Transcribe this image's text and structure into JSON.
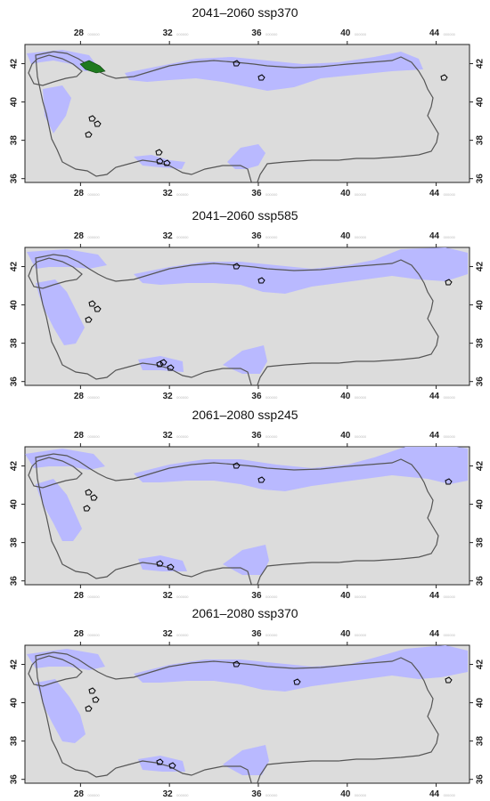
{
  "figure": {
    "x_ticks": [
      "28",
      "32",
      "36",
      "40",
      "44"
    ],
    "y_ticks": [
      "42",
      "40",
      "38",
      "36"
    ],
    "x_tick_suffix": "000000",
    "colors": {
      "background": "#dcdcdc",
      "suitable": "#b9b9ff",
      "border": "#555555",
      "current": "#000000",
      "highlight": "#1f7a1f"
    }
  },
  "panels": [
    {
      "title": "2041–2060 ssp370"
    },
    {
      "title": "2041–2060 ssp585"
    },
    {
      "title": "2061–2080 ssp245"
    },
    {
      "title": "2061–2080 ssp370"
    }
  ]
}
